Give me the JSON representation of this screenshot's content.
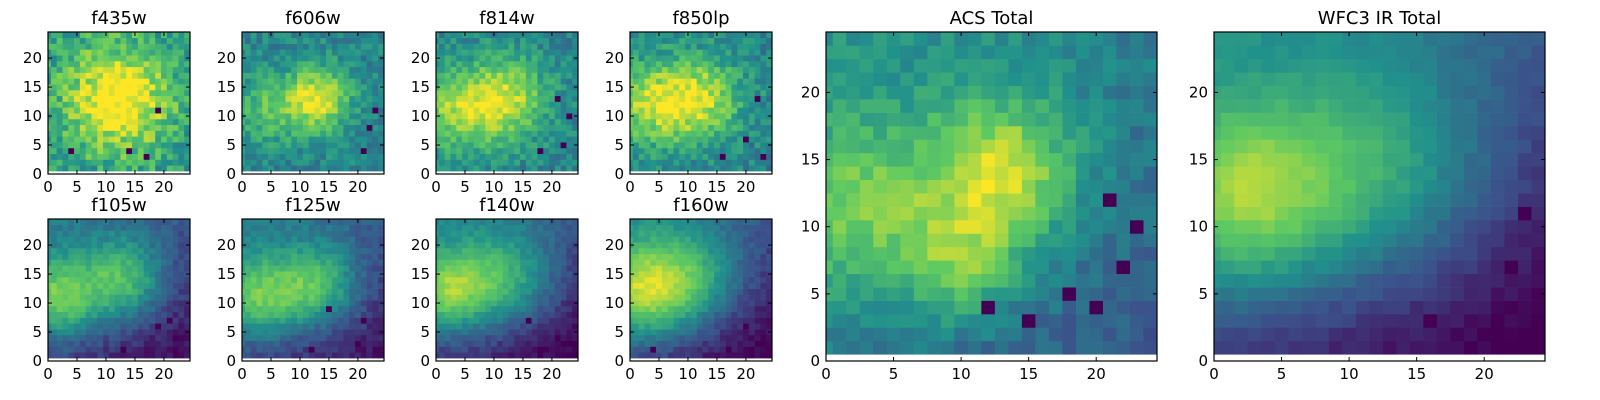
{
  "chart_data": {
    "type": "heatmap",
    "colormap": [
      "#440154",
      "#3b528b",
      "#21918c",
      "#5ec962",
      "#fde725"
    ],
    "panels": [
      {
        "id": "f435w",
        "title": "f435w",
        "grid_size": 25,
        "xticks": [
          0,
          5,
          10,
          15,
          20
        ],
        "yticks": [
          0,
          5,
          10,
          15,
          20
        ],
        "blobs": [
          [
            12,
            12,
            6,
            0.55
          ]
        ],
        "base": 0.55,
        "noise": 0.32,
        "gradient": 0.0,
        "holes": [
          [
            14,
            3
          ],
          [
            17,
            2
          ],
          [
            4,
            3
          ],
          [
            19,
            10
          ]
        ],
        "seed": 11
      },
      {
        "id": "f606w",
        "title": "f606w",
        "grid_size": 25,
        "xticks": [
          0,
          5,
          10,
          15,
          20
        ],
        "yticks": [
          0,
          5,
          10,
          15,
          20
        ],
        "blobs": [
          [
            13,
            12,
            4,
            0.5
          ],
          [
            4,
            10,
            4,
            0.25
          ]
        ],
        "base": 0.45,
        "noise": 0.22,
        "gradient": 0.0,
        "holes": [
          [
            22,
            7
          ],
          [
            21,
            3
          ],
          [
            23,
            10
          ]
        ],
        "seed": 12
      },
      {
        "id": "f814w",
        "title": "f814w",
        "grid_size": 25,
        "xticks": [
          0,
          5,
          10,
          15,
          20
        ],
        "yticks": [
          0,
          5,
          10,
          15,
          20
        ],
        "blobs": [
          [
            12,
            12,
            5,
            0.45
          ],
          [
            3,
            10,
            5,
            0.35
          ]
        ],
        "base": 0.45,
        "noise": 0.22,
        "gradient": 0.0,
        "holes": [
          [
            21,
            12
          ],
          [
            23,
            9
          ],
          [
            18,
            3
          ],
          [
            22,
            4
          ]
        ],
        "seed": 13
      },
      {
        "id": "f850lp",
        "title": "f850lp",
        "grid_size": 25,
        "xticks": [
          0,
          5,
          10,
          15,
          20
        ],
        "yticks": [
          0,
          5,
          10,
          15,
          20
        ],
        "blobs": [
          [
            12,
            12,
            5,
            0.45
          ],
          [
            3,
            11,
            5,
            0.4
          ]
        ],
        "base": 0.45,
        "noise": 0.24,
        "gradient": 0.0,
        "holes": [
          [
            22,
            12
          ],
          [
            20,
            5
          ],
          [
            16,
            2
          ],
          [
            23,
            2
          ]
        ],
        "seed": 14
      },
      {
        "id": "f105w",
        "title": "f105w",
        "grid_size": 25,
        "xticks": [
          0,
          5,
          10,
          15,
          20
        ],
        "yticks": [
          0,
          5,
          10,
          15,
          20
        ],
        "blobs": [
          [
            2,
            10,
            5,
            0.5
          ],
          [
            13,
            13,
            5,
            0.45
          ]
        ],
        "base": 0.3,
        "noise": 0.12,
        "gradient": 0.25,
        "holes": [
          [
            13,
            1
          ],
          [
            21,
            6
          ],
          [
            22,
            3
          ],
          [
            19,
            5
          ]
        ],
        "seed": 21
      },
      {
        "id": "f125w",
        "title": "f125w",
        "grid_size": 25,
        "xticks": [
          0,
          5,
          10,
          15,
          20
        ],
        "yticks": [
          0,
          5,
          10,
          15,
          20
        ],
        "blobs": [
          [
            3,
            10,
            5,
            0.45
          ],
          [
            13,
            12,
            5,
            0.45
          ]
        ],
        "base": 0.32,
        "noise": 0.12,
        "gradient": 0.25,
        "holes": [
          [
            15,
            8
          ],
          [
            21,
            6
          ],
          [
            12,
            1
          ],
          [
            20,
            2
          ]
        ],
        "seed": 22
      },
      {
        "id": "f140w",
        "title": "f140w",
        "grid_size": 25,
        "xticks": [
          0,
          5,
          10,
          15,
          20
        ],
        "yticks": [
          0,
          5,
          10,
          15,
          20
        ],
        "blobs": [
          [
            2,
            11,
            5,
            0.5
          ],
          [
            12,
            13,
            6,
            0.4
          ]
        ],
        "base": 0.3,
        "noise": 0.1,
        "gradient": 0.3,
        "holes": [
          [
            16,
            6
          ],
          [
            21,
            3
          ],
          [
            18,
            1
          ],
          [
            22,
            2
          ]
        ],
        "seed": 23
      },
      {
        "id": "f160w",
        "title": "f160w",
        "grid_size": 25,
        "xticks": [
          0,
          5,
          10,
          15,
          20
        ],
        "yticks": [
          0,
          5,
          10,
          15,
          20
        ],
        "blobs": [
          [
            2,
            11,
            6,
            0.55
          ],
          [
            11,
            13,
            6,
            0.35
          ]
        ],
        "base": 0.3,
        "noise": 0.1,
        "gradient": 0.3,
        "holes": [
          [
            4,
            1
          ],
          [
            20,
            5
          ],
          [
            22,
            2
          ],
          [
            17,
            1
          ]
        ],
        "seed": 24
      },
      {
        "id": "acs-total",
        "title": "ACS Total",
        "grid_size": 25,
        "xticks": [
          0,
          5,
          10,
          15,
          20
        ],
        "yticks": [
          0,
          5,
          10,
          15,
          20
        ],
        "blobs": [
          [
            13,
            13,
            4,
            0.5
          ],
          [
            2,
            10,
            5,
            0.35
          ],
          [
            10,
            6,
            3,
            0.3
          ]
        ],
        "base": 0.45,
        "noise": 0.15,
        "gradient": 0.15,
        "holes": [
          [
            21,
            11
          ],
          [
            23,
            9
          ],
          [
            18,
            4
          ],
          [
            15,
            2
          ],
          [
            20,
            3
          ],
          [
            12,
            3
          ],
          [
            22,
            6
          ]
        ],
        "seed": 31
      },
      {
        "id": "wfc3-ir-total",
        "title": "WFC3 IR Total",
        "grid_size": 25,
        "xticks": [
          0,
          5,
          10,
          15,
          20
        ],
        "yticks": [
          0,
          5,
          10,
          15,
          20
        ],
        "blobs": [
          [
            2,
            11,
            5,
            0.5
          ],
          [
            12,
            13,
            6,
            0.35
          ]
        ],
        "base": 0.33,
        "noise": 0.06,
        "gradient": 0.35,
        "holes": [
          [
            16,
            2
          ],
          [
            20,
            1
          ],
          [
            23,
            10
          ],
          [
            22,
            6
          ]
        ],
        "seed": 32
      }
    ]
  }
}
